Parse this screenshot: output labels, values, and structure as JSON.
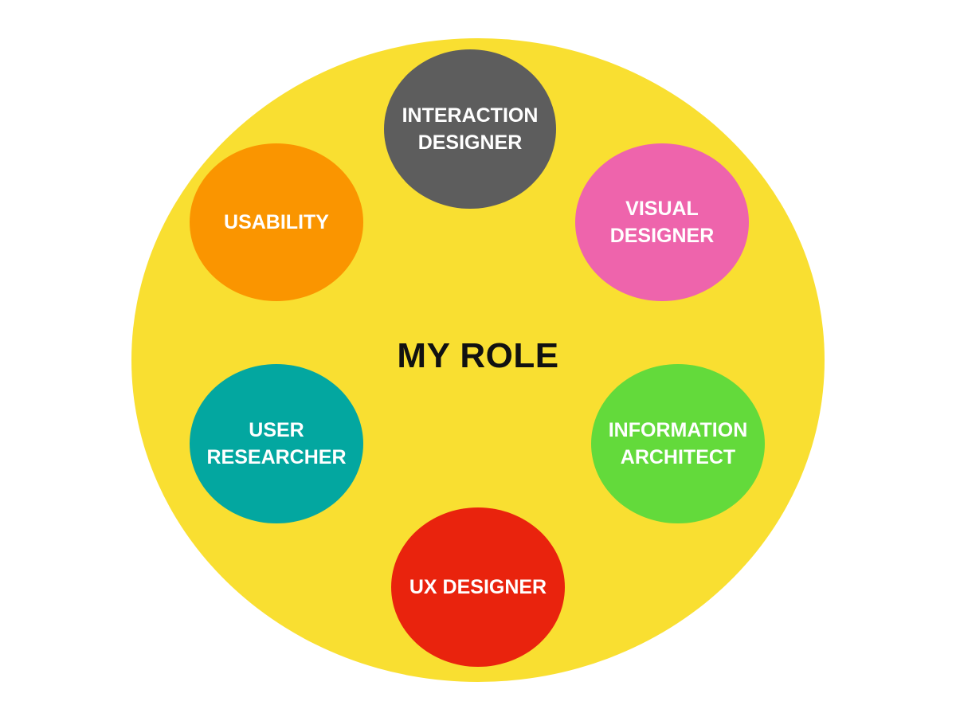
{
  "diagram": {
    "center": {
      "label": "MY ROLE",
      "color": "#f9df31"
    },
    "roles": [
      {
        "label": "INTERACTION\nDESIGNER",
        "color": "#5d5d5d"
      },
      {
        "label": "VISUAL\nDESIGNER",
        "color": "#ee64ac"
      },
      {
        "label": "INFORMATION\nARCHITECT",
        "color": "#63da3b"
      },
      {
        "label": "UX DESIGNER",
        "color": "#e9230d"
      },
      {
        "label": "USER\nRESEARCHER",
        "color": "#03a7a0"
      },
      {
        "label": "USABILITY",
        "color": "#fa9500"
      }
    ]
  }
}
